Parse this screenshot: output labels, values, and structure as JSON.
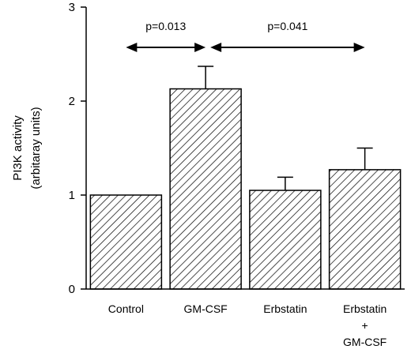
{
  "chart_data": {
    "type": "bar",
    "title": "",
    "xlabel": "",
    "ylabel": [
      "PI3K activity",
      "(arbitaray units)"
    ],
    "ylim": [
      0,
      3
    ],
    "yticks": [
      0,
      1,
      2,
      3
    ],
    "categories": [
      {
        "lines": [
          "Control"
        ]
      },
      {
        "lines": [
          "GM-CSF"
        ]
      },
      {
        "lines": [
          "Erbstatin"
        ]
      },
      {
        "lines": [
          "Erbstatin",
          "+",
          "GM-CSF"
        ]
      }
    ],
    "values": [
      1.0,
      2.13,
      1.05,
      1.27
    ],
    "errors": [
      0,
      0.24,
      0.14,
      0.23
    ],
    "fill": "hatched",
    "bar_color": "#000000",
    "comparisons": [
      {
        "label": "p=0.013",
        "from": 0,
        "to": 1
      },
      {
        "label": "p=0.041",
        "from": 1,
        "to": 3
      }
    ]
  }
}
